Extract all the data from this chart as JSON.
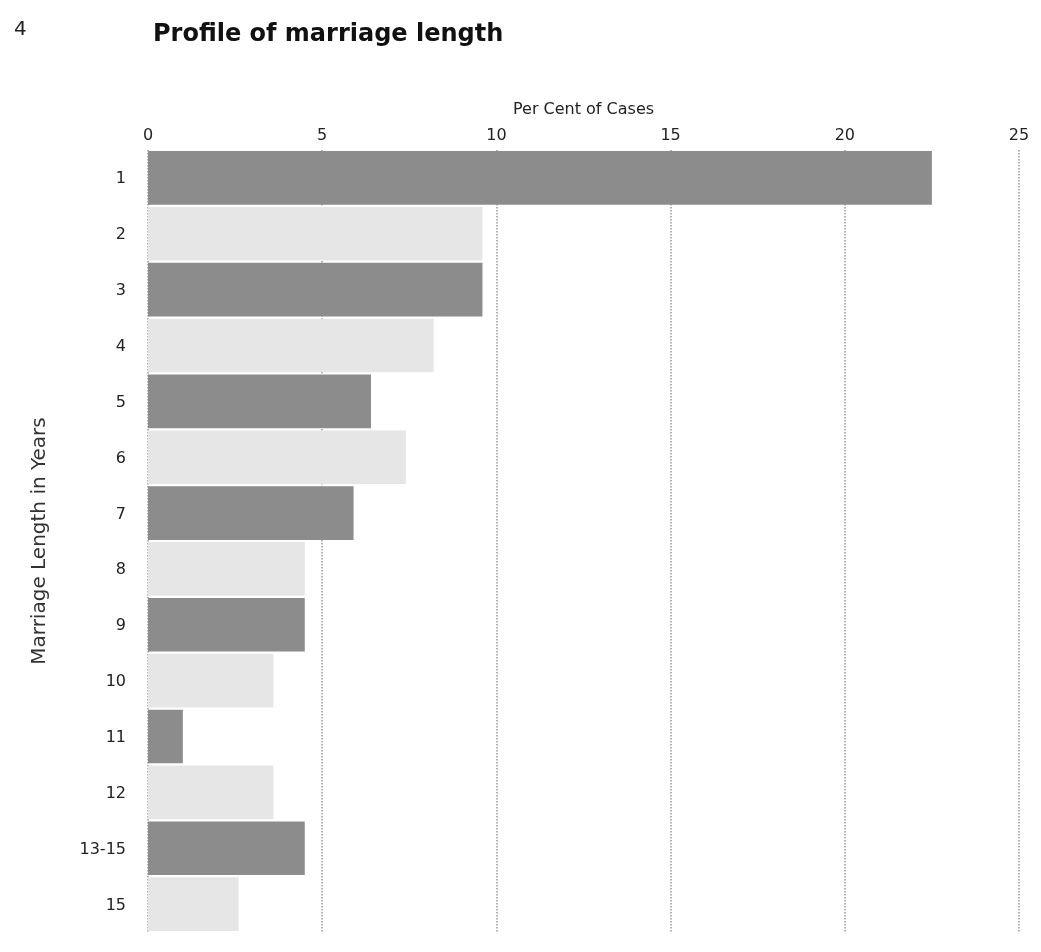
{
  "chart_data": {
    "type": "bar",
    "orientation": "horizontal",
    "title": "Profile of marriage length",
    "annotations": [
      "4"
    ],
    "xlabel": "Per Cent of Cases",
    "ylabel": "Marriage Length in Years",
    "categories": [
      "1",
      "2",
      "3",
      "4",
      "5",
      "6",
      "7",
      "8",
      "9",
      "10",
      "11",
      "12",
      "13-15",
      "15"
    ],
    "values": [
      22.5,
      9.6,
      9.6,
      8.2,
      6.4,
      7.4,
      5.9,
      4.5,
      4.5,
      3.6,
      1.0,
      3.6,
      4.5,
      2.6
    ],
    "colors": [
      "#8c8c8c",
      "#e6e6e6",
      "#8c8c8c",
      "#e6e6e6",
      "#8c8c8c",
      "#e6e6e6",
      "#8c8c8c",
      "#e6e6e6",
      "#8c8c8c",
      "#e6e6e6",
      "#8c8c8c",
      "#e6e6e6",
      "#8c8c8c",
      "#e6e6e6"
    ],
    "xlim": [
      0,
      25
    ],
    "xticks": [
      0,
      5,
      10,
      15,
      20,
      25
    ],
    "grid": "x"
  }
}
